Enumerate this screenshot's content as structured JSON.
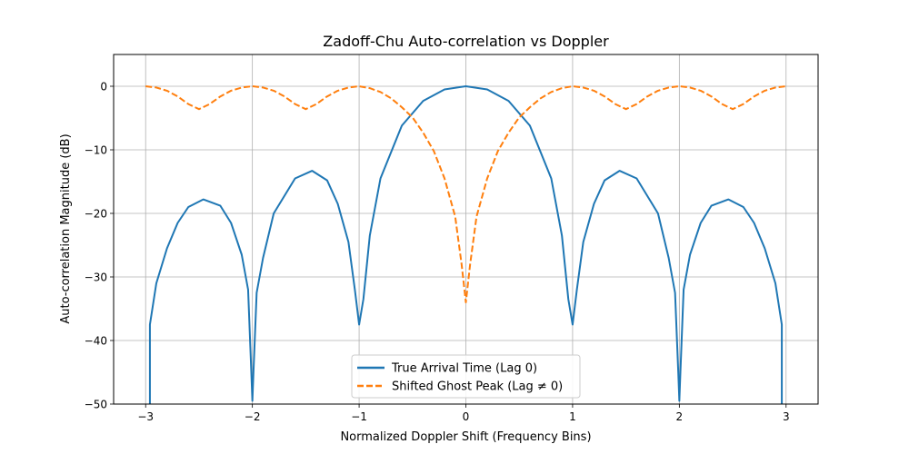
{
  "chart_data": {
    "type": "line",
    "title": "Zadoff-Chu Auto-correlation vs Doppler",
    "xlabel": "Normalized Doppler Shift (Frequency Bins)",
    "ylabel": "Auto-correlation Magnitude (dB)",
    "xlim": [
      -3.3,
      3.3
    ],
    "ylim": [
      -50,
      5
    ],
    "xticks": [
      -3,
      -2,
      -1,
      0,
      1,
      2,
      3
    ],
    "xtick_labels": [
      "−3",
      "−2",
      "−1",
      "0",
      "1",
      "2",
      "3"
    ],
    "yticks": [
      -50,
      -40,
      -30,
      -20,
      -10,
      0
    ],
    "ytick_labels": [
      "−50",
      "−40",
      "−30",
      "−20",
      "−10",
      "0"
    ],
    "grid": true,
    "legend_position": "bottom-center",
    "series": [
      {
        "name": "True Arrival Time (Lag 0)",
        "color": "#1f77b4",
        "style": "solid",
        "x": [
          -2.96,
          -2.96,
          -2.9,
          -2.8,
          -2.7,
          -2.6,
          -2.46,
          -2.3,
          -2.2,
          -2.1,
          -2.04,
          -2.01,
          -2.0,
          -1.99,
          -1.96,
          -1.9,
          -1.8,
          -1.6,
          -1.44,
          -1.3,
          -1.2,
          -1.1,
          -1.04,
          -1.0,
          -0.96,
          -0.9,
          -0.8,
          -0.6,
          -0.4,
          -0.2,
          0.0,
          0.2,
          0.4,
          0.6,
          0.8,
          0.9,
          0.96,
          1.0,
          1.04,
          1.1,
          1.2,
          1.3,
          1.44,
          1.6,
          1.8,
          1.9,
          1.96,
          1.99,
          2.0,
          2.01,
          2.04,
          2.1,
          2.2,
          2.3,
          2.46,
          2.6,
          2.7,
          2.8,
          2.9,
          2.96,
          2.96
        ],
        "y": [
          -50,
          -37.5,
          -31,
          -25.5,
          -21.5,
          -19,
          -17.8,
          -18.8,
          -21.5,
          -26.5,
          -32,
          -45,
          -49.5,
          -45,
          -32.5,
          -27,
          -20,
          -14.5,
          -13.3,
          -14.8,
          -18.5,
          -24.5,
          -32,
          -37.5,
          -33.5,
          -23.5,
          -14.5,
          -6.2,
          -2.3,
          -0.5,
          0,
          -0.5,
          -2.3,
          -6.2,
          -14.5,
          -23.5,
          -33.5,
          -37.5,
          -32,
          -24.5,
          -18.5,
          -14.8,
          -13.3,
          -14.5,
          -20,
          -27,
          -32.5,
          -45,
          -49.5,
          -45,
          -32,
          -26.5,
          -21.5,
          -18.8,
          -17.8,
          -19,
          -21.5,
          -25.5,
          -31,
          -37.5,
          -50
        ]
      },
      {
        "name": "Shifted Ghost Peak (Lag ≠ 0)",
        "color": "#ff7f0e",
        "style": "dashed",
        "x": [
          -3.0,
          -2.9,
          -2.8,
          -2.7,
          -2.6,
          -2.5,
          -2.4,
          -2.3,
          -2.2,
          -2.1,
          -2.0,
          -1.9,
          -1.8,
          -1.7,
          -1.6,
          -1.5,
          -1.4,
          -1.3,
          -1.2,
          -1.1,
          -1.0,
          -0.9,
          -0.8,
          -0.7,
          -0.6,
          -0.5,
          -0.4,
          -0.3,
          -0.2,
          -0.1,
          -0.04,
          0.0,
          0.04,
          0.1,
          0.2,
          0.3,
          0.4,
          0.5,
          0.6,
          0.7,
          0.8,
          0.9,
          1.0,
          1.1,
          1.2,
          1.3,
          1.4,
          1.5,
          1.6,
          1.7,
          1.8,
          1.9,
          2.0,
          2.1,
          2.2,
          2.3,
          2.4,
          2.5,
          2.6,
          2.7,
          2.8,
          2.9,
          3.0
        ],
        "y": [
          0,
          -0.2,
          -0.7,
          -1.6,
          -2.8,
          -3.6,
          -2.8,
          -1.6,
          -0.7,
          -0.2,
          0,
          -0.2,
          -0.7,
          -1.6,
          -2.8,
          -3.6,
          -2.8,
          -1.6,
          -0.7,
          -0.2,
          0,
          -0.3,
          -0.9,
          -1.9,
          -3.3,
          -4.9,
          -7.3,
          -10.2,
          -14.5,
          -20.5,
          -28,
          -34,
          -28,
          -20.5,
          -14.5,
          -10.2,
          -7.3,
          -4.9,
          -3.3,
          -1.9,
          -0.9,
          -0.3,
          0,
          -0.2,
          -0.7,
          -1.6,
          -2.8,
          -3.6,
          -2.8,
          -1.6,
          -0.7,
          -0.2,
          0,
          -0.2,
          -0.7,
          -1.6,
          -2.8,
          -3.6,
          -2.8,
          -1.6,
          -0.7,
          -0.2,
          0
        ]
      }
    ]
  }
}
